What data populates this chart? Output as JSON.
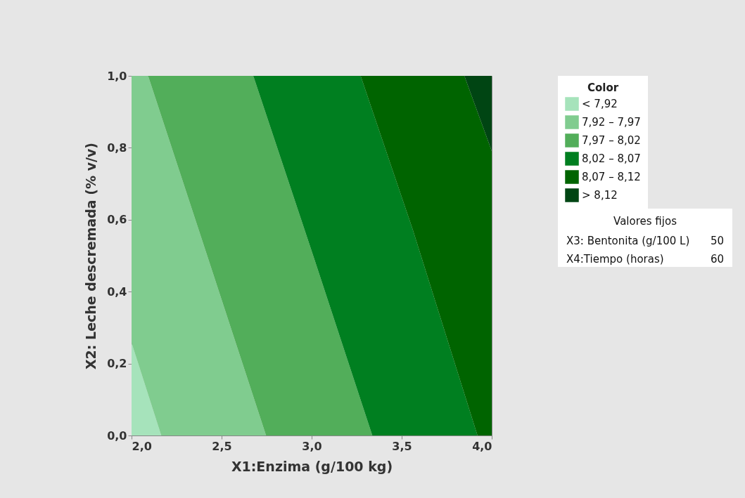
{
  "chart_data": {
    "type": "area",
    "xlabel": "X1:Enzima (g/100 kg)",
    "ylabel": "X2: Leche descremada (% v/v)",
    "legend_title": "Color",
    "xlim": [
      2.0,
      4.0
    ],
    "ylim": [
      0.0,
      1.0
    ],
    "xticks": [
      {
        "value": 2.0,
        "label": "2,0"
      },
      {
        "value": 2.5,
        "label": "2,5"
      },
      {
        "value": 3.0,
        "label": "3,0"
      },
      {
        "value": 3.5,
        "label": "3,5"
      },
      {
        "value": 4.0,
        "label": "4,0"
      }
    ],
    "yticks": [
      {
        "value": 0.0,
        "label": "0,0"
      },
      {
        "value": 0.2,
        "label": "0,2"
      },
      {
        "value": 0.4,
        "label": "0,4"
      },
      {
        "value": 0.6,
        "label": "0,6"
      },
      {
        "value": 0.8,
        "label": "0,8"
      },
      {
        "value": 1.0,
        "label": "1,0"
      }
    ],
    "series": [
      {
        "name": "< 7,92",
        "color": "#a6e3bb",
        "x": [
          2.0,
          2.0,
          2.165
        ],
        "values": [
          0.0,
          0.258,
          0.0
        ]
      },
      {
        "name": "7,92 – 7,97",
        "color": "#80cc8f",
        "x": [
          2.0,
          2.0,
          2.092,
          2.415,
          2.747,
          2.165
        ],
        "values": [
          0.258,
          1.0,
          1.0,
          0.508,
          0.0,
          0.0
        ]
      },
      {
        "name": "7,97 – 8,02",
        "color": "#52ae5a",
        "x": [
          2.092,
          2.676,
          3.012,
          3.337,
          2.747,
          2.415
        ],
        "values": [
          1.0,
          1.0,
          0.495,
          0.0,
          0.0,
          0.508
        ]
      },
      {
        "name": "8,02 – 8,07",
        "color": "#007f20",
        "x": [
          2.676,
          3.272,
          3.561,
          3.921,
          3.337,
          3.012
        ],
        "values": [
          1.0,
          1.0,
          0.573,
          0.0,
          0.0,
          0.495
        ]
      },
      {
        "name": "8,07 – 8,12",
        "color": "#006400",
        "x": [
          3.272,
          3.848,
          4.0,
          4.0,
          3.921,
          3.561
        ],
        "values": [
          1.0,
          1.0,
          0.791,
          0.0,
          0.0,
          0.573
        ]
      },
      {
        "name": "> 8,12",
        "color": "#004513",
        "x": [
          3.848,
          4.0,
          4.0
        ],
        "values": [
          1.0,
          1.0,
          0.791
        ]
      }
    ],
    "annotations": [
      "Valores fijos",
      "X3: Bentonita (g/100 L)",
      "50",
      "X4:Tiempo (horas)",
      "60"
    ],
    "legend": "right",
    "grid": false
  }
}
